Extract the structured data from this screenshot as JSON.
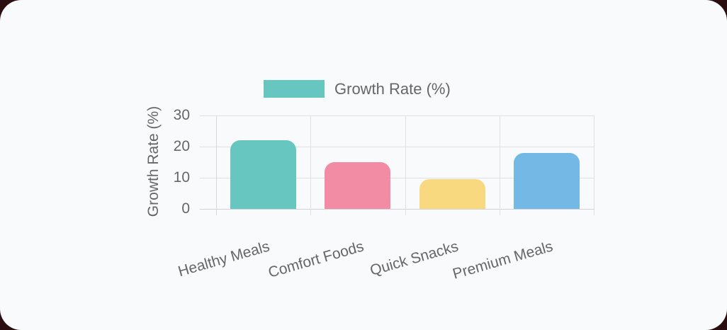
{
  "page": {
    "background_color": "#2B0F10",
    "card_color": "#F8FAFC"
  },
  "legend": {
    "label": "Growth Rate (%)",
    "swatch_color": "#67C6BF"
  },
  "chart_data": {
    "type": "bar",
    "title": "",
    "categories": [
      "Healthy Meals",
      "Comfort Foods",
      "Quick Snacks",
      "Premium Meals"
    ],
    "series": [
      {
        "name": "Growth Rate (%)",
        "values": [
          22,
          15,
          9.5,
          18
        ]
      }
    ],
    "colors": [
      "#67C6BF",
      "#F28BA4",
      "#F9D980",
      "#74B9E5"
    ],
    "xlabel": "",
    "ylabel": "Growth Rate (%)",
    "ylim": [
      0,
      30
    ],
    "yticks": [
      30,
      20,
      10,
      0
    ],
    "ytick_labels": [
      "30",
      "20",
      "10",
      "0"
    ],
    "grid": true,
    "legend_position": "top",
    "text_color": "#666666",
    "grid_color": "#E0E0E5"
  }
}
